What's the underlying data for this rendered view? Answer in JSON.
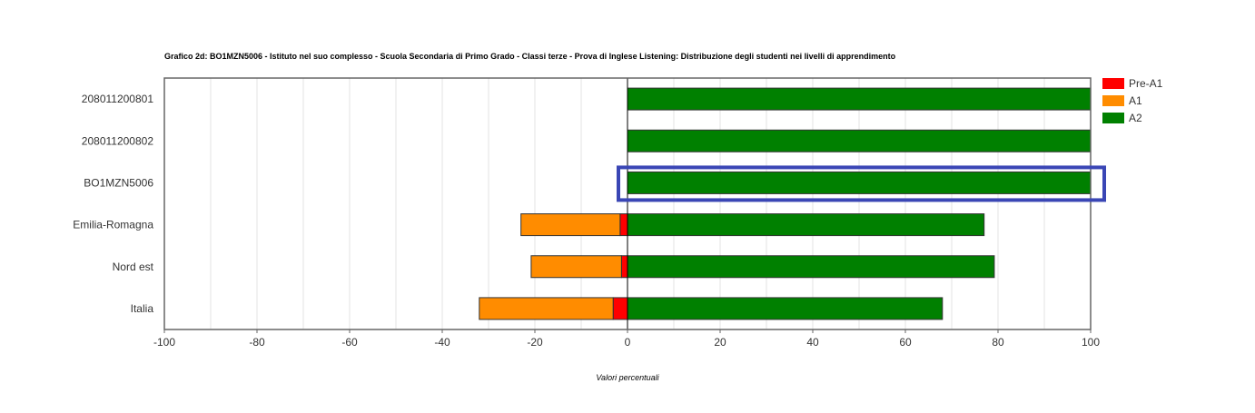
{
  "chart_data": {
    "type": "bar",
    "orientation": "horizontal",
    "stacking": "diverging",
    "title": "Grafico 2d: BO1MZN5006 - Istituto nel suo complesso - Scuola Secondaria di Primo Grado - Classi terze - Prova di Inglese Listening: Distribuzione degli studenti nei livelli di apprendimento",
    "xlabel": "Valori percentuali",
    "ylabel": "",
    "xlim": [
      -100,
      100
    ],
    "x_ticks": [
      "-100",
      "-80",
      "-60",
      "-40",
      "-20",
      "0",
      "20",
      "40",
      "60",
      "80",
      "100"
    ],
    "x_tick_values": [
      -100,
      -80,
      -60,
      -40,
      -20,
      0,
      20,
      40,
      60,
      80,
      100
    ],
    "grid": "vertical",
    "legend_position": "top-right",
    "categories": [
      "208011200801",
      "208011200802",
      "BO1MZN5006",
      "Emilia-Romagna",
      "Nord est",
      "Italia"
    ],
    "highlighted_category": "BO1MZN5006",
    "highlight_color": "#3a46b5",
    "series": [
      {
        "name": "Pre-A1",
        "color": "#ff0000",
        "values": [
          0,
          0,
          0,
          -1.6,
          -1.3,
          -3.1
        ]
      },
      {
        "name": "A1",
        "color": "#ff8c00",
        "values": [
          0,
          0,
          0,
          -21.4,
          -19.5,
          -28.9
        ]
      },
      {
        "name": "A2",
        "color": "#008000",
        "values": [
          100,
          100,
          100,
          77,
          79.2,
          68
        ]
      }
    ]
  }
}
